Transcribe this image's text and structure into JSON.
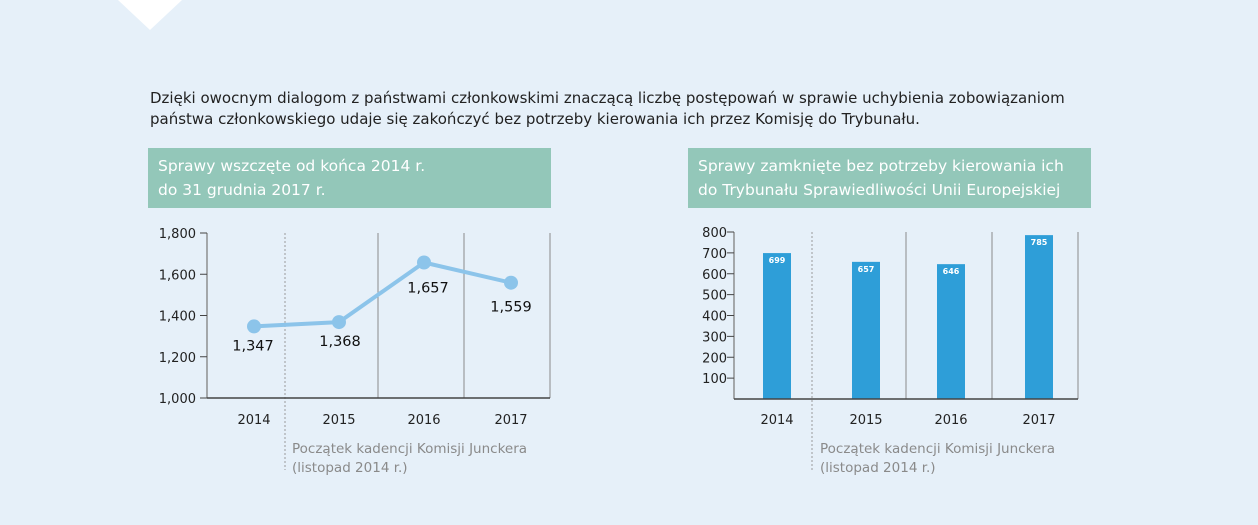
{
  "intro_text": "Dzięki owocnym dialogom z państwami członkowskimi znaczącą liczbę postępowań w sprawie uchybienia zobowiązaniom państwa członkowskiego udaje się zakończyć bez potrzeby kierowania ich przez Komisję do Trybunału.",
  "colors": {
    "title_bg": "#93c7b9",
    "line": "#8cc4ea",
    "bar": "#2e9ed8"
  },
  "chart_data": [
    {
      "type": "line",
      "title": "Sprawy wszczęte od końca 2014 r.\ndo 31 grudnia 2017 r.",
      "categories": [
        "2014",
        "2015",
        "2016",
        "2017"
      ],
      "values": [
        1347,
        1368,
        1657,
        1559
      ],
      "data_labels": [
        "1,347",
        "1,368",
        "1,657",
        "1,559"
      ],
      "ylim": [
        1000,
        1800
      ],
      "yticks": [
        "1,000",
        "1,200",
        "1,400",
        "1,600",
        "1,800"
      ],
      "annotation": [
        "Początek kadencji Komisji Junckera",
        "(listopad 2014 r.)"
      ]
    },
    {
      "type": "bar",
      "title": "Sprawy zamknięte bez potrzeby kierowania ich\ndo Trybunału Sprawiedliwości Unii Europejskiej",
      "categories": [
        "2014",
        "2015",
        "2016",
        "2017"
      ],
      "values": [
        699,
        657,
        646,
        785
      ],
      "data_labels": [
        "699",
        "657",
        "646",
        "785"
      ],
      "ylim": [
        0,
        800
      ],
      "yticks": [
        "100",
        "200",
        "300",
        "400",
        "500",
        "600",
        "700",
        "800"
      ],
      "annotation": [
        "Początek kadencji Komisji Junckera",
        "(listopad 2014 r.)"
      ]
    }
  ]
}
